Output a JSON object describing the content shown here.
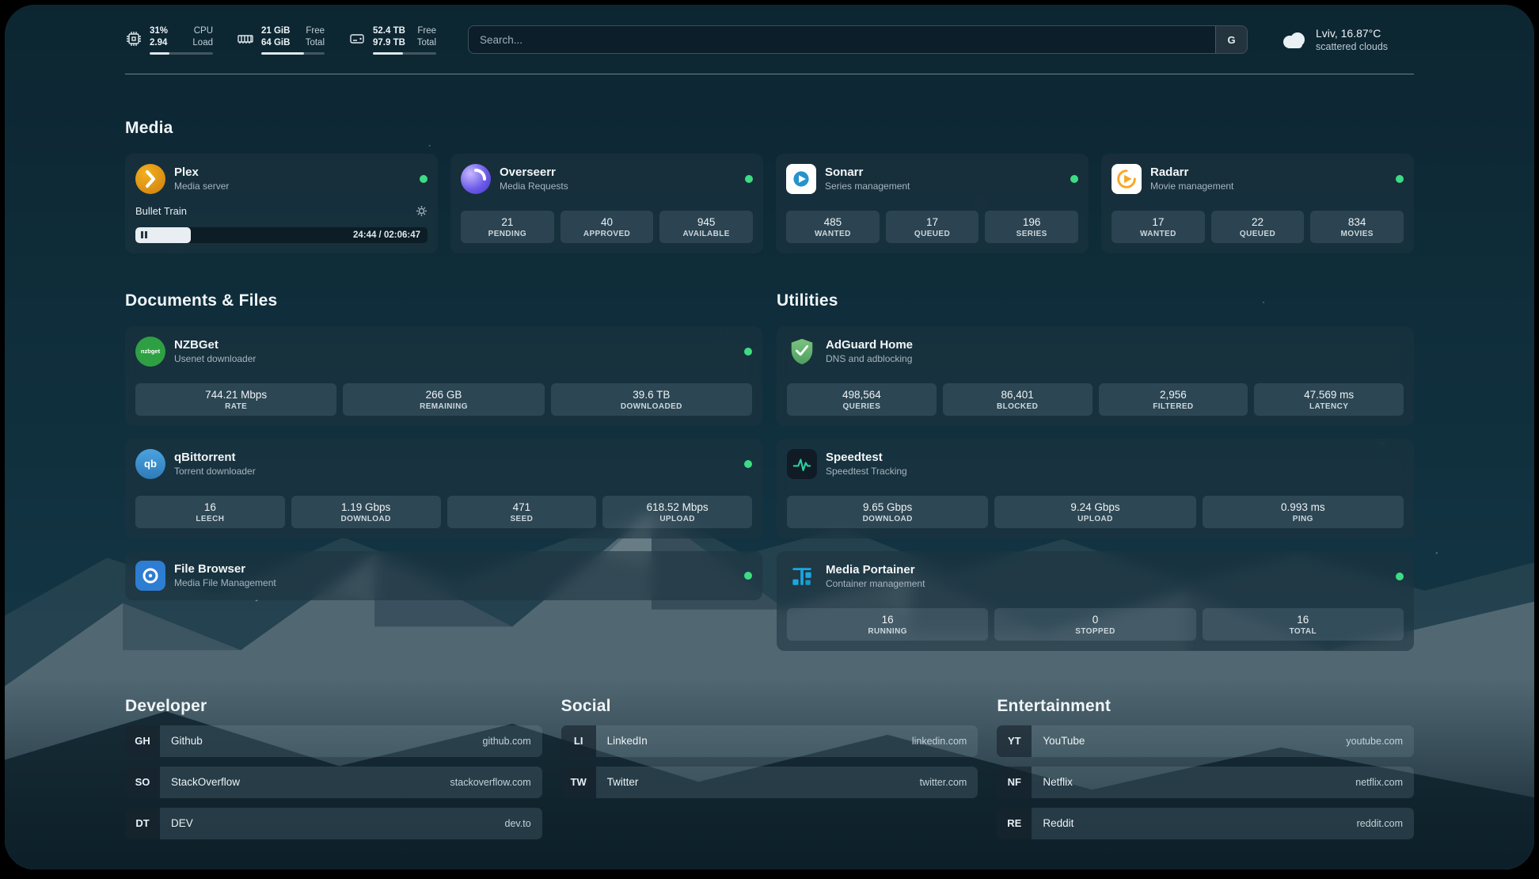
{
  "header": {
    "cpu": {
      "value": "31%",
      "sub": "2.94",
      "label_top": "CPU",
      "label_bottom": "Load",
      "progress": 31
    },
    "memory": {
      "value": "21 GiB",
      "sub": "64 GiB",
      "label_top": "Free",
      "label_bottom": "Total",
      "progress": 67
    },
    "disk": {
      "value": "52.4 TB",
      "sub": "97.9 TB",
      "label_top": "Free",
      "label_bottom": "Total",
      "progress": 47
    },
    "search": {
      "placeholder": "Search...",
      "provider": "G"
    },
    "weather": {
      "location": "Lviv, 16.87°C",
      "condition": "scattered clouds"
    }
  },
  "sections": {
    "media": {
      "title": "Media"
    },
    "documents": {
      "title": "Documents & Files"
    },
    "utilities": {
      "title": "Utilities"
    },
    "developer": {
      "title": "Developer"
    },
    "social": {
      "title": "Social"
    },
    "entertainment": {
      "title": "Entertainment"
    }
  },
  "services": {
    "plex": {
      "name": "Plex",
      "desc": "Media server",
      "now_playing": "Bullet Train",
      "time": "24:44 / 02:06:47",
      "progress": 19
    },
    "overseerr": {
      "name": "Overseerr",
      "desc": "Media Requests",
      "stats": [
        {
          "value": "21",
          "label": "PENDING"
        },
        {
          "value": "40",
          "label": "APPROVED"
        },
        {
          "value": "945",
          "label": "AVAILABLE"
        }
      ]
    },
    "sonarr": {
      "name": "Sonarr",
      "desc": "Series management",
      "stats": [
        {
          "value": "485",
          "label": "WANTED"
        },
        {
          "value": "17",
          "label": "QUEUED"
        },
        {
          "value": "196",
          "label": "SERIES"
        }
      ]
    },
    "radarr": {
      "name": "Radarr",
      "desc": "Movie management",
      "stats": [
        {
          "value": "17",
          "label": "WANTED"
        },
        {
          "value": "22",
          "label": "QUEUED"
        },
        {
          "value": "834",
          "label": "MOVIES"
        }
      ]
    },
    "nzbget": {
      "name": "NZBGet",
      "desc": "Usenet downloader",
      "badge": "nzbget",
      "stats": [
        {
          "value": "744.21 Mbps",
          "label": "RATE"
        },
        {
          "value": "266 GB",
          "label": "REMAINING"
        },
        {
          "value": "39.6 TB",
          "label": "DOWNLOADED"
        }
      ]
    },
    "qbittorrent": {
      "name": "qBittorrent",
      "desc": "Torrent downloader",
      "badge": "qb",
      "stats": [
        {
          "value": "16",
          "label": "LEECH"
        },
        {
          "value": "1.19 Gbps",
          "label": "DOWNLOAD"
        },
        {
          "value": "471",
          "label": "SEED"
        },
        {
          "value": "618.52 Mbps",
          "label": "UPLOAD"
        }
      ]
    },
    "filebrowser": {
      "name": "File Browser",
      "desc": "Media File Management"
    },
    "adguard": {
      "name": "AdGuard Home",
      "desc": "DNS and adblocking",
      "stats": [
        {
          "value": "498,564",
          "label": "QUERIES"
        },
        {
          "value": "86,401",
          "label": "BLOCKED"
        },
        {
          "value": "2,956",
          "label": "FILTERED"
        },
        {
          "value": "47.569 ms",
          "label": "LATENCY"
        }
      ]
    },
    "speedtest": {
      "name": "Speedtest",
      "desc": "Speedtest Tracking",
      "stats": [
        {
          "value": "9.65 Gbps",
          "label": "DOWNLOAD"
        },
        {
          "value": "9.24 Gbps",
          "label": "UPLOAD"
        },
        {
          "value": "0.993 ms",
          "label": "PING"
        }
      ]
    },
    "portainer": {
      "name": "Media Portainer",
      "desc": "Container management",
      "stats": [
        {
          "value": "16",
          "label": "RUNNING"
        },
        {
          "value": "0",
          "label": "STOPPED"
        },
        {
          "value": "16",
          "label": "TOTAL"
        }
      ]
    }
  },
  "bookmarks": {
    "developer": [
      {
        "abbr": "GH",
        "name": "Github",
        "url": "github.com"
      },
      {
        "abbr": "SO",
        "name": "StackOverflow",
        "url": "stackoverflow.com"
      },
      {
        "abbr": "DT",
        "name": "DEV",
        "url": "dev.to"
      }
    ],
    "social": [
      {
        "abbr": "LI",
        "name": "LinkedIn",
        "url": "linkedin.com"
      },
      {
        "abbr": "TW",
        "name": "Twitter",
        "url": "twitter.com"
      }
    ],
    "entertainment": [
      {
        "abbr": "YT",
        "name": "YouTube",
        "url": "youtube.com"
      },
      {
        "abbr": "NF",
        "name": "Netflix",
        "url": "netflix.com"
      },
      {
        "abbr": "RE",
        "name": "Reddit",
        "url": "reddit.com"
      }
    ]
  }
}
